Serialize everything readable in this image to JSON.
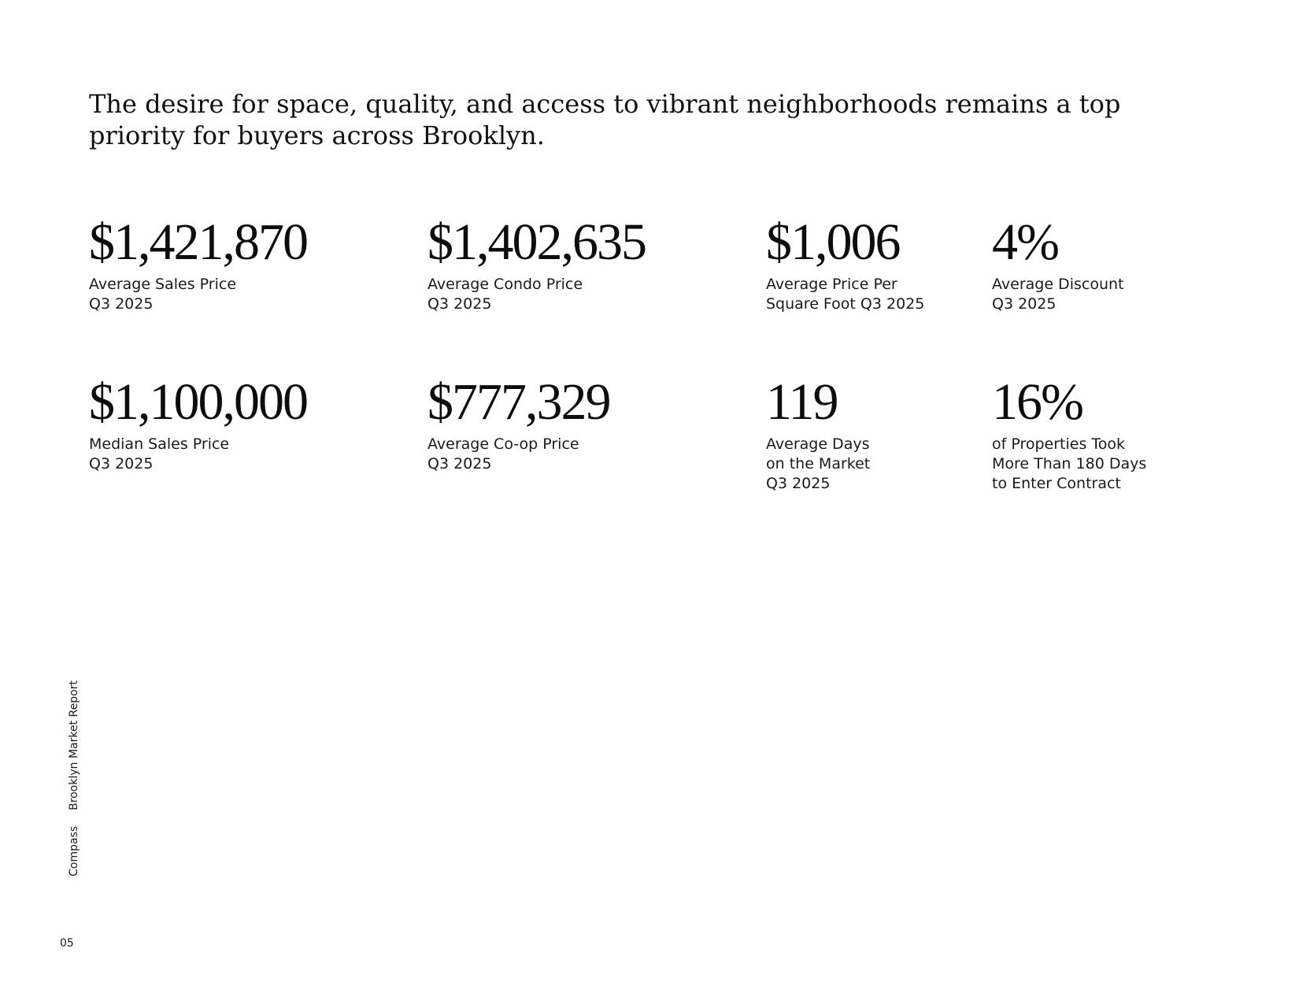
{
  "intro": {
    "text": "The desire for space, quality, and access to vibrant neighborhoods remains a top priority for buyers across Brooklyn."
  },
  "stats": [
    {
      "value": "$1,421,870",
      "label": "Average Sales Price\nQ3 2025"
    },
    {
      "value": "$1,402,635",
      "label": "Average Condo Price\nQ3 2025"
    },
    {
      "value": "$1,006",
      "label": "Average Price Per\nSquare Foot Q3 2025"
    },
    {
      "value": "4%",
      "label": "Average Discount\nQ3 2025"
    },
    {
      "value": "$1,100,000",
      "label": "Median Sales Price\nQ3 2025"
    },
    {
      "value": "$777,329",
      "label": "Average Co-op Price\nQ3 2025"
    },
    {
      "value": "119",
      "label": "Average Days\non the Market\nQ3 2025"
    },
    {
      "value": "16%",
      "label": "of Properties Took\nMore Than 180 Days\nto Enter Contract"
    }
  ],
  "footer": {
    "brand": "Compass",
    "report": "Brooklyn Market Report",
    "page_number": "05"
  }
}
